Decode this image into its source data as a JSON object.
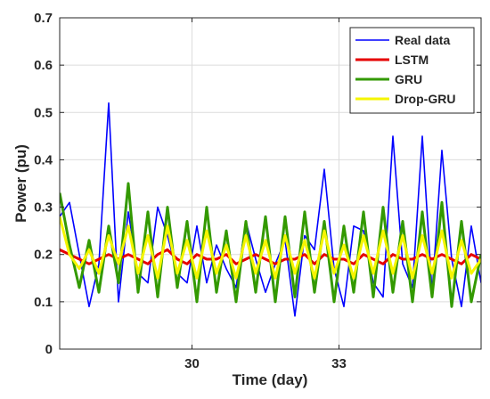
{
  "chart_data": {
    "type": "line",
    "title": "",
    "xlabel": "Time (day)",
    "ylabel": "Power (pu)",
    "xlim": [
      27.3,
      35.9
    ],
    "ylim": [
      0,
      0.7
    ],
    "x_ticks": [
      30,
      33
    ],
    "y_ticks": [
      0,
      0.1,
      0.2,
      0.3,
      0.4,
      0.5,
      0.6,
      0.7
    ],
    "y_tick_labels": [
      "0",
      "0.1",
      "0.2",
      "0.3",
      "0.4",
      "0.5",
      "0.6",
      "0.7"
    ],
    "x_tick_labels": [
      "30",
      "33"
    ],
    "grid": true,
    "legend_position": "top-right",
    "x": [
      27.3,
      27.5,
      27.7,
      27.9,
      28.1,
      28.3,
      28.5,
      28.7,
      28.9,
      29.1,
      29.3,
      29.5,
      29.7,
      29.9,
      30.1,
      30.3,
      30.5,
      30.7,
      30.9,
      31.1,
      31.3,
      31.5,
      31.7,
      31.9,
      32.1,
      32.3,
      32.5,
      32.7,
      32.9,
      33.1,
      33.3,
      33.5,
      33.7,
      33.9,
      34.1,
      34.3,
      34.5,
      34.7,
      34.9,
      35.1,
      35.3,
      35.5,
      35.7,
      35.9
    ],
    "series": [
      {
        "name": "Real data",
        "color": "#0000ff",
        "width": 1.6,
        "values": [
          0.28,
          0.31,
          0.2,
          0.09,
          0.18,
          0.52,
          0.1,
          0.29,
          0.16,
          0.14,
          0.3,
          0.24,
          0.16,
          0.14,
          0.26,
          0.14,
          0.22,
          0.17,
          0.13,
          0.27,
          0.19,
          0.12,
          0.18,
          0.23,
          0.07,
          0.24,
          0.21,
          0.38,
          0.17,
          0.09,
          0.26,
          0.25,
          0.14,
          0.11,
          0.45,
          0.18,
          0.13,
          0.45,
          0.12,
          0.42,
          0.19,
          0.09,
          0.26,
          0.14
        ]
      },
      {
        "name": "LSTM",
        "color": "#e60000",
        "width": 3,
        "values": [
          0.21,
          0.2,
          0.19,
          0.18,
          0.19,
          0.2,
          0.19,
          0.2,
          0.19,
          0.18,
          0.2,
          0.21,
          0.19,
          0.18,
          0.2,
          0.19,
          0.19,
          0.2,
          0.18,
          0.19,
          0.2,
          0.19,
          0.18,
          0.19,
          0.19,
          0.2,
          0.18,
          0.2,
          0.19,
          0.19,
          0.18,
          0.2,
          0.19,
          0.18,
          0.2,
          0.19,
          0.19,
          0.2,
          0.19,
          0.2,
          0.19,
          0.18,
          0.2,
          0.19
        ]
      },
      {
        "name": "GRU",
        "color": "#339900",
        "width": 3,
        "values": [
          0.33,
          0.22,
          0.13,
          0.23,
          0.12,
          0.26,
          0.14,
          0.35,
          0.12,
          0.29,
          0.11,
          0.3,
          0.13,
          0.27,
          0.1,
          0.3,
          0.12,
          0.25,
          0.1,
          0.27,
          0.12,
          0.28,
          0.1,
          0.28,
          0.11,
          0.29,
          0.12,
          0.27,
          0.1,
          0.26,
          0.12,
          0.29,
          0.11,
          0.3,
          0.12,
          0.27,
          0.1,
          0.29,
          0.11,
          0.31,
          0.09,
          0.27,
          0.1,
          0.2
        ]
      },
      {
        "name": "Drop-GRU",
        "color": "#f5f500",
        "width": 3,
        "values": [
          0.28,
          0.2,
          0.17,
          0.21,
          0.16,
          0.24,
          0.18,
          0.26,
          0.16,
          0.24,
          0.15,
          0.26,
          0.16,
          0.23,
          0.15,
          0.25,
          0.16,
          0.22,
          0.15,
          0.24,
          0.16,
          0.23,
          0.15,
          0.24,
          0.16,
          0.23,
          0.15,
          0.25,
          0.16,
          0.22,
          0.15,
          0.24,
          0.16,
          0.25,
          0.16,
          0.24,
          0.15,
          0.24,
          0.16,
          0.25,
          0.15,
          0.23,
          0.16,
          0.19
        ]
      }
    ]
  }
}
